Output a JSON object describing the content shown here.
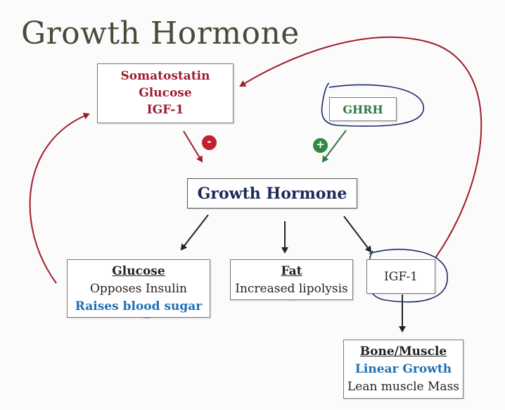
{
  "title": "Growth Hormone",
  "inhibitors": {
    "line1": "Somatostatin",
    "line2": "Glucose",
    "line3": "IGF-1"
  },
  "ghrh": {
    "label": "GHRH"
  },
  "signs": {
    "minus": "-",
    "plus": "+"
  },
  "growth_hormone": {
    "label": "Growth Hormone"
  },
  "glucose_box": {
    "heading": "Glucose",
    "line1": "Opposes Insulin",
    "line2": "Raises blood sugar"
  },
  "fat_box": {
    "heading": "Fat",
    "line1": "Increased lipolysis"
  },
  "igf_box": {
    "label": "IGF-1"
  },
  "bone_box": {
    "heading": "Bone/Muscle",
    "line1": "Linear Growth",
    "line2": "Lean muscle Mass"
  },
  "colors": {
    "inhibit": "#a01c2d",
    "stimulate": "#2f7a3e",
    "effect": "#1f6fb5",
    "pen": "#1a2a6c"
  }
}
